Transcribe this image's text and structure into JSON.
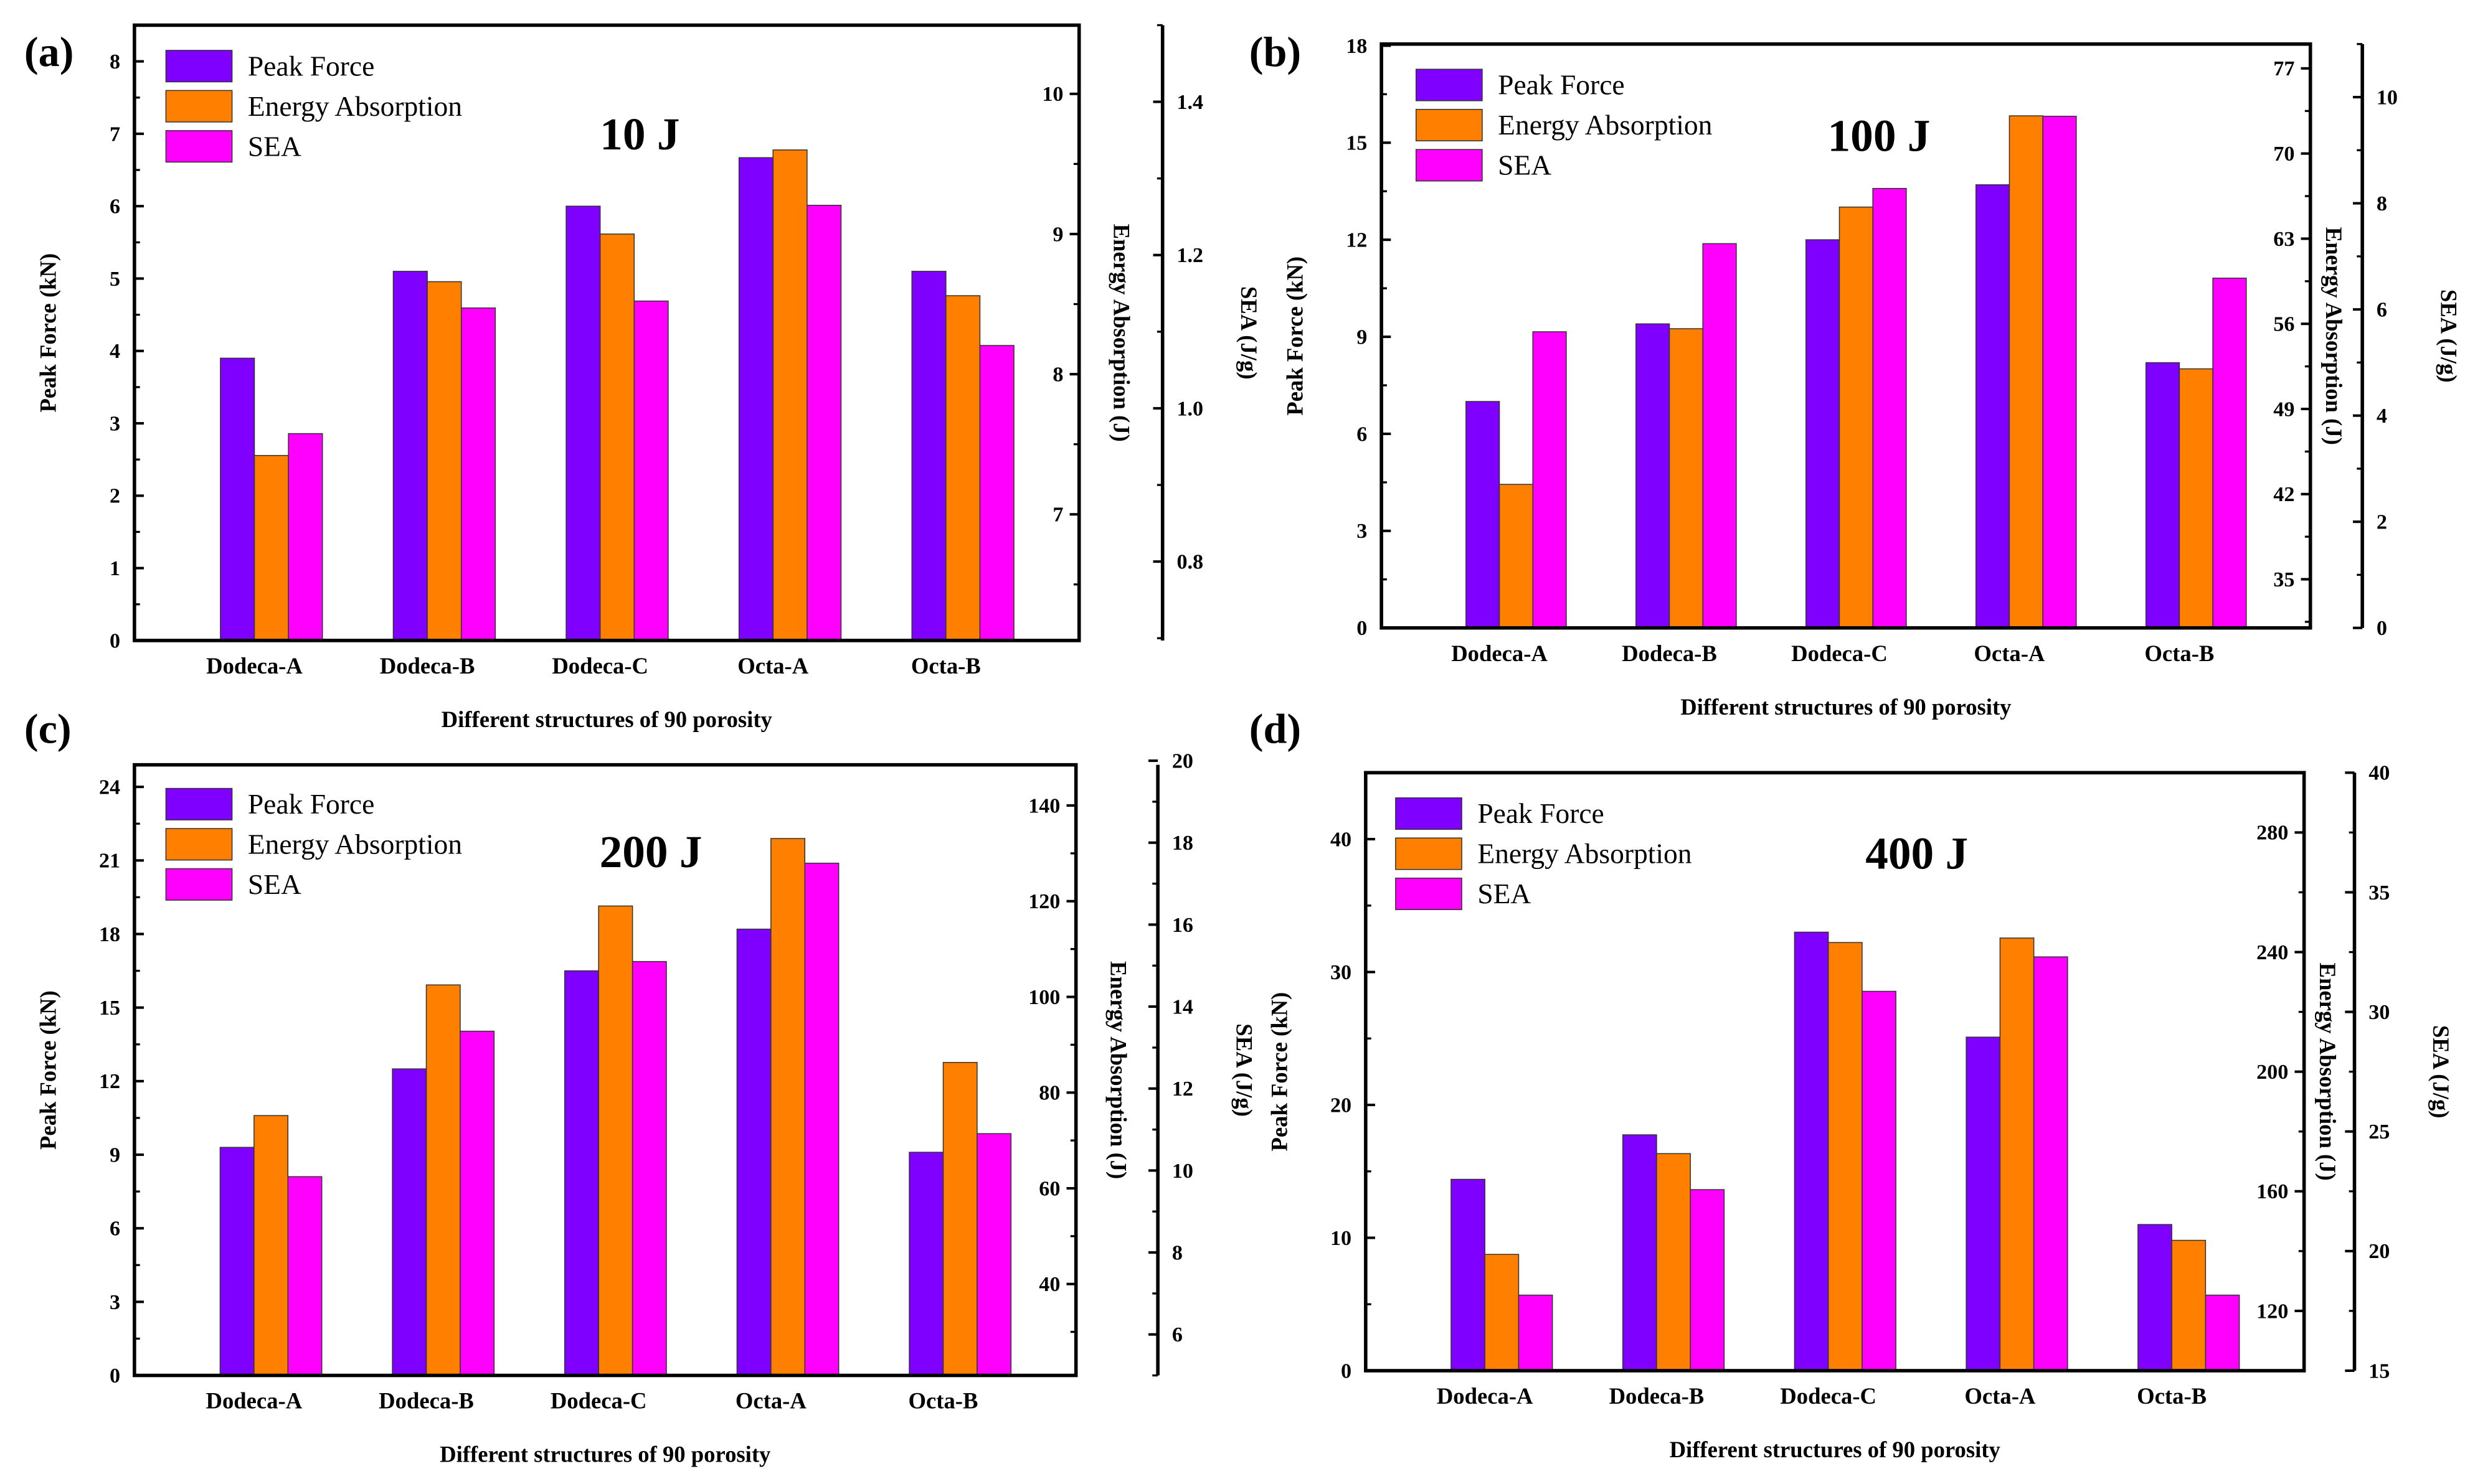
{
  "colors": {
    "peak_force": "#8000FF",
    "energy_absorption": "#FF8000",
    "sea": "#FF00FF"
  },
  "chart_data": [
    {
      "type": "bar",
      "panel_label": "(a)",
      "title": "10 J",
      "xlabel": "Different structures of 90 porosity",
      "categories": [
        "Dodeca-A",
        "Dodeca-B",
        "Dodeca-C",
        "Octa-A",
        "Octa-B"
      ],
      "legend": [
        "Peak Force",
        "Energy Absorption",
        "SEA"
      ],
      "legend_position": "top-left",
      "axes": {
        "left": {
          "label": "Peak Force (kN)",
          "range": [
            0,
            8.5
          ],
          "ticks": [
            "0",
            "1",
            "2",
            "3",
            "4",
            "5",
            "6",
            "7",
            "8"
          ]
        },
        "right1": {
          "label": "Energy Absorption (J)",
          "range": [
            6.1,
            10.49
          ],
          "ticks": [
            "7",
            "8",
            "9",
            "10"
          ]
        },
        "right2": {
          "label": "SEA (J/g)",
          "range": [
            0.697,
            1.5
          ],
          "ticks": [
            "0.8",
            "1.0",
            "1.2",
            "1.4"
          ]
        }
      },
      "series": [
        {
          "name": "Peak Force",
          "axis": "left",
          "values": [
            3.9,
            5.1,
            6.0,
            6.67,
            5.1
          ]
        },
        {
          "name": "Energy Absorption",
          "axis": "right1",
          "values": [
            7.42,
            8.66,
            9.0,
            9.6,
            8.56
          ]
        },
        {
          "name": "SEA",
          "axis": "right2",
          "values": [
            0.967,
            1.131,
            1.14,
            1.265,
            1.082
          ]
        }
      ]
    },
    {
      "type": "bar",
      "panel_label": "(b)",
      "title": "100 J",
      "xlabel": "Different structures of 90 porosity",
      "categories": [
        "Dodeca-A",
        "Dodeca-B",
        "Dodeca-C",
        "Octa-A",
        "Octa-B"
      ],
      "legend": [
        "Peak Force",
        "Energy Absorption",
        "SEA"
      ],
      "legend_position": "top-left",
      "axes": {
        "left": {
          "label": "Peak Force (kN)",
          "range": [
            0,
            18.05
          ],
          "ticks": [
            "0",
            "3",
            "6",
            "9",
            "12",
            "15",
            "18"
          ]
        },
        "right1": {
          "label": "Energy Absorption (J)",
          "range": [
            31,
            79
          ],
          "ticks": [
            "35",
            "42",
            "49",
            "56",
            "63",
            "70",
            "77"
          ]
        },
        "right2": {
          "label": "SEA (J/g)",
          "range": [
            0,
            11
          ],
          "ticks": [
            "0",
            "2",
            "4",
            "6",
            "8",
            "10"
          ]
        }
      },
      "series": [
        {
          "name": "Peak Force",
          "axis": "left",
          "values": [
            7.0,
            9.4,
            12.0,
            13.7,
            8.2
          ]
        },
        {
          "name": "Energy Absorption",
          "axis": "right1",
          "values": [
            42.8,
            55.6,
            65.6,
            73.1,
            52.3
          ]
        },
        {
          "name": "SEA",
          "axis": "right2",
          "values": [
            5.58,
            7.24,
            8.28,
            9.64,
            6.59
          ]
        }
      ]
    },
    {
      "type": "bar",
      "panel_label": "(c)",
      "title": "200 J",
      "xlabel": "Different structures of 90 porosity",
      "categories": [
        "Dodeca-A",
        "Dodeca-B",
        "Dodeca-C",
        "Octa-A",
        "Octa-B"
      ],
      "legend": [
        "Peak Force",
        "Energy Absorption",
        "SEA"
      ],
      "legend_position": "top-left",
      "axes": {
        "left": {
          "label": "Peak Force (kN)",
          "range": [
            0,
            24.9
          ],
          "ticks": [
            "0",
            "3",
            "6",
            "9",
            "12",
            "15",
            "18",
            "21",
            "24"
          ]
        },
        "right1": {
          "label": "Energy Absorption (J)",
          "range": [
            20.9,
            148.5
          ],
          "ticks": [
            "40",
            "60",
            "80",
            "100",
            "120",
            "140"
          ]
        },
        "right2": {
          "label": "SEA (J/g)",
          "range": [
            5,
            19.9
          ],
          "ticks": [
            "6",
            "8",
            "10",
            "12",
            "14",
            "16",
            "18",
            "20"
          ]
        }
      },
      "series": [
        {
          "name": "Peak Force",
          "axis": "left",
          "values": [
            9.3,
            12.5,
            16.5,
            18.2,
            9.1
          ]
        },
        {
          "name": "Energy Absorption",
          "axis": "right1",
          "values": [
            75.2,
            102.5,
            119.0,
            133.1,
            86.3
          ]
        },
        {
          "name": "SEA",
          "axis": "right2",
          "values": [
            9.85,
            13.4,
            15.1,
            17.5,
            10.9
          ]
        }
      ]
    },
    {
      "type": "bar",
      "panel_label": "(d)",
      "title": "400 J",
      "xlabel": "Different structures of 90 porosity",
      "categories": [
        "Dodeca-A",
        "Dodeca-B",
        "Dodeca-C",
        "Octa-A",
        "Octa-B"
      ],
      "legend": [
        "Peak Force",
        "Energy Absorption",
        "SEA"
      ],
      "legend_position": "top-left",
      "axes": {
        "left": {
          "label": "Peak Force (kN)",
          "range": [
            0,
            45
          ],
          "ticks": [
            "0",
            "10",
            "20",
            "30",
            "40"
          ]
        },
        "right1": {
          "label": "Energy Absorption (J)",
          "range": [
            100,
            300
          ],
          "ticks": [
            "120",
            "160",
            "200",
            "240",
            "280"
          ]
        },
        "right2": {
          "label": "SEA (J/g)",
          "range": [
            15,
            40
          ],
          "ticks": [
            "15",
            "20",
            "25",
            "30",
            "35",
            "40"
          ]
        }
      },
      "series": [
        {
          "name": "Peak Force",
          "axis": "left",
          "values": [
            14.4,
            17.75,
            33.0,
            25.1,
            11.0
          ]
        },
        {
          "name": "Energy Absorption",
          "axis": "right1",
          "values": [
            138.9,
            172.6,
            243.2,
            244.7,
            143.6
          ]
        },
        {
          "name": "SEA",
          "axis": "right2",
          "values": [
            18.16,
            22.57,
            30.86,
            32.3,
            18.16
          ]
        }
      ]
    }
  ]
}
